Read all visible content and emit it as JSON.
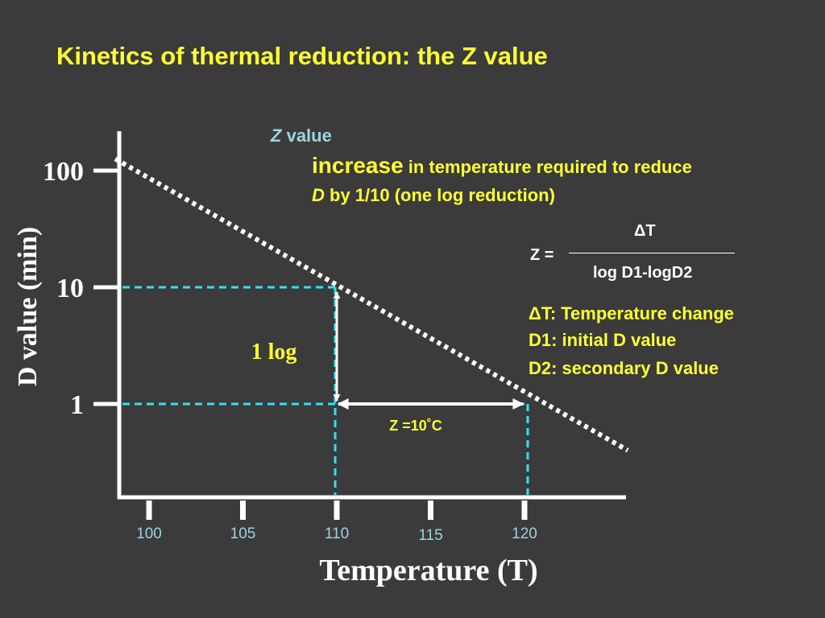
{
  "title": "Kinetics of thermal reduction: the Z value",
  "annotation": {
    "z_italic": "Z",
    "z_word": "value",
    "def_increase": "increase",
    "def_rest1": "in temperature required to reduce",
    "def_d": "D",
    "def_rest2": "by 1/10 (one log reduction)",
    "formula_left": "Z =",
    "formula_numerator": "ΔT",
    "formula_denominator": "log D1-logD2",
    "legend": [
      "ΔT: Temperature change",
      "D1: initial D value",
      "D2: secondary D value"
    ],
    "one_log": "1 log",
    "z_label": "Z =10˚C"
  },
  "colors": {
    "background": "#3b3b3b",
    "title": "#ffff33",
    "z_value_label": "#9fd2e0",
    "guide_lines": "#33e0f0",
    "axis": "#ffffff"
  },
  "chart_data": {
    "type": "line",
    "title": "",
    "xlabel": "Temperature (T)",
    "ylabel": "D value (min)",
    "x_ticks": [
      100,
      105,
      110,
      115,
      120
    ],
    "x_tick_labels": [
      "100",
      "105",
      "110",
      "115",
      "120"
    ],
    "y_ticks": [
      1,
      10,
      100
    ],
    "y_tick_labels": [
      "1",
      "10",
      "100"
    ],
    "y_scale": "log",
    "xlim": [
      99,
      126
    ],
    "series": [
      {
        "style": "dotted",
        "x": [
          98.2,
          125.5
        ],
        "y": [
          126,
          0.4
        ]
      }
    ],
    "reference_points": [
      {
        "x": 110,
        "y": 10
      },
      {
        "x": 120,
        "y": 1
      }
    ]
  }
}
